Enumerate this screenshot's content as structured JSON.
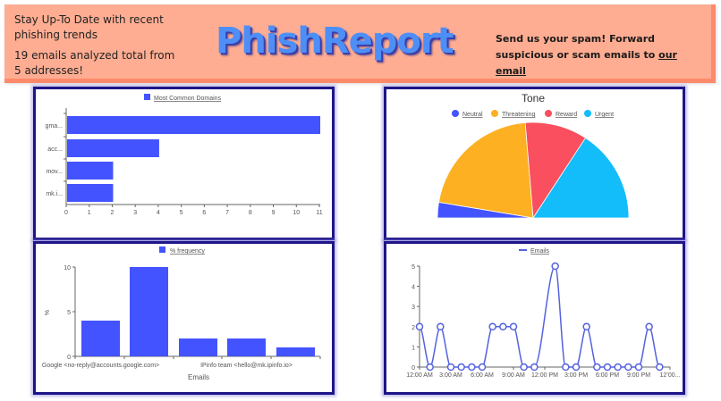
{
  "header": {
    "tagline": "Stay Up-To Date with recent phishing trends",
    "summary": "19 emails analyzed total from 5 addresses!",
    "title": "PhishReport",
    "cta_text": "Send us your spam! Forward suspicious or scam emails to ",
    "cta_link": "our email",
    "colors": {
      "background": "#FFAD92",
      "border": "#FF8A6A",
      "title": "#4E8FF7"
    }
  },
  "cards": {
    "border_color": "#1E1587"
  },
  "chart_data": [
    {
      "id": "most-common-domains",
      "type": "bar",
      "orientation": "horizontal",
      "title": "",
      "legend": [
        "Most Common Domains"
      ],
      "legend_position": "top",
      "categories": [
        "gma...",
        "acc...",
        "mov...",
        "mk.i..."
      ],
      "values": [
        11,
        4,
        2,
        2
      ],
      "xticks": [
        "0",
        "1",
        "2",
        "3",
        "4",
        "5",
        "6",
        "7",
        "8",
        "9",
        "10",
        "11"
      ],
      "xlim": [
        0,
        11
      ],
      "color": "#4353FF",
      "grid": false
    },
    {
      "id": "tone",
      "type": "pie",
      "variant": "half-pie",
      "title": "Tone",
      "legend_position": "top",
      "categories": [
        "Neutral",
        "Threatening",
        "Reward",
        "Urgent"
      ],
      "values": [
        1,
        8,
        4,
        6
      ],
      "colors": [
        "#4353FF",
        "#FDB022",
        "#F94F5E",
        "#12BDF9"
      ]
    },
    {
      "id": "email-frequency",
      "type": "bar",
      "title": "",
      "legend": [
        "% frequency"
      ],
      "legend_position": "top",
      "xlabel": "Emails",
      "ylabel": "%",
      "categories": [
        "Google <no-reply@accounts.google.com>",
        "",
        "",
        "IPinfo team <hello@mk.ipinfo.io>",
        ""
      ],
      "visible_xtick_labels": [
        "Google <no-reply@accounts.google.com>",
        "IPinfo team <hello@mk.ipinfo.io>"
      ],
      "values": [
        4,
        10,
        2,
        2,
        1
      ],
      "yticks": [
        "0",
        "5",
        "10"
      ],
      "ylim": [
        0,
        10
      ],
      "color": "#4353FF",
      "grid": false
    },
    {
      "id": "emails-by-hour",
      "type": "line",
      "title": "",
      "legend": [
        "Emails"
      ],
      "legend_position": "top",
      "x_hours": [
        0,
        1,
        2,
        3,
        4,
        5,
        6,
        7,
        8,
        9,
        10,
        11,
        13,
        14,
        15,
        16,
        17,
        18,
        19,
        20,
        21,
        22,
        23
      ],
      "values": [
        2,
        0,
        2,
        0,
        0,
        0,
        0,
        2,
        2,
        2,
        0,
        0,
        5,
        0,
        0,
        2,
        0,
        0,
        0,
        0,
        0,
        2,
        0
      ],
      "xticks": [
        "12:00 AM",
        "3:00 AM",
        "6:00 AM",
        "9:00 AM",
        "12:00 PM",
        "3:00 PM",
        "6:00 PM",
        "9:00 PM",
        "12’00..."
      ],
      "yticks": [
        "0",
        "1",
        "2",
        "3",
        "4",
        "5"
      ],
      "ylim": [
        0,
        5
      ],
      "color": "#5562E0",
      "grid": false
    }
  ]
}
